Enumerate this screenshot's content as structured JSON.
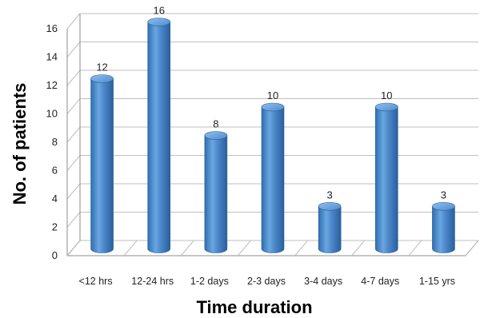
{
  "chart_data": {
    "type": "bar",
    "categories": [
      "<12 hrs",
      "12-24 hrs",
      "1-2 days",
      "2-3 days",
      "3-4 days",
      "4-7 days",
      "1-15 yrs"
    ],
    "values": [
      12,
      16,
      8,
      10,
      3,
      10,
      3
    ],
    "xlabel": "Time duration",
    "ylabel": "No. of patients",
    "ylim": [
      0,
      16
    ],
    "yticks": [
      0,
      2,
      4,
      6,
      8,
      10,
      12,
      14,
      16
    ],
    "grid": true,
    "bar_style": "3d-cylinder",
    "bar_color": "#4a86c8"
  }
}
